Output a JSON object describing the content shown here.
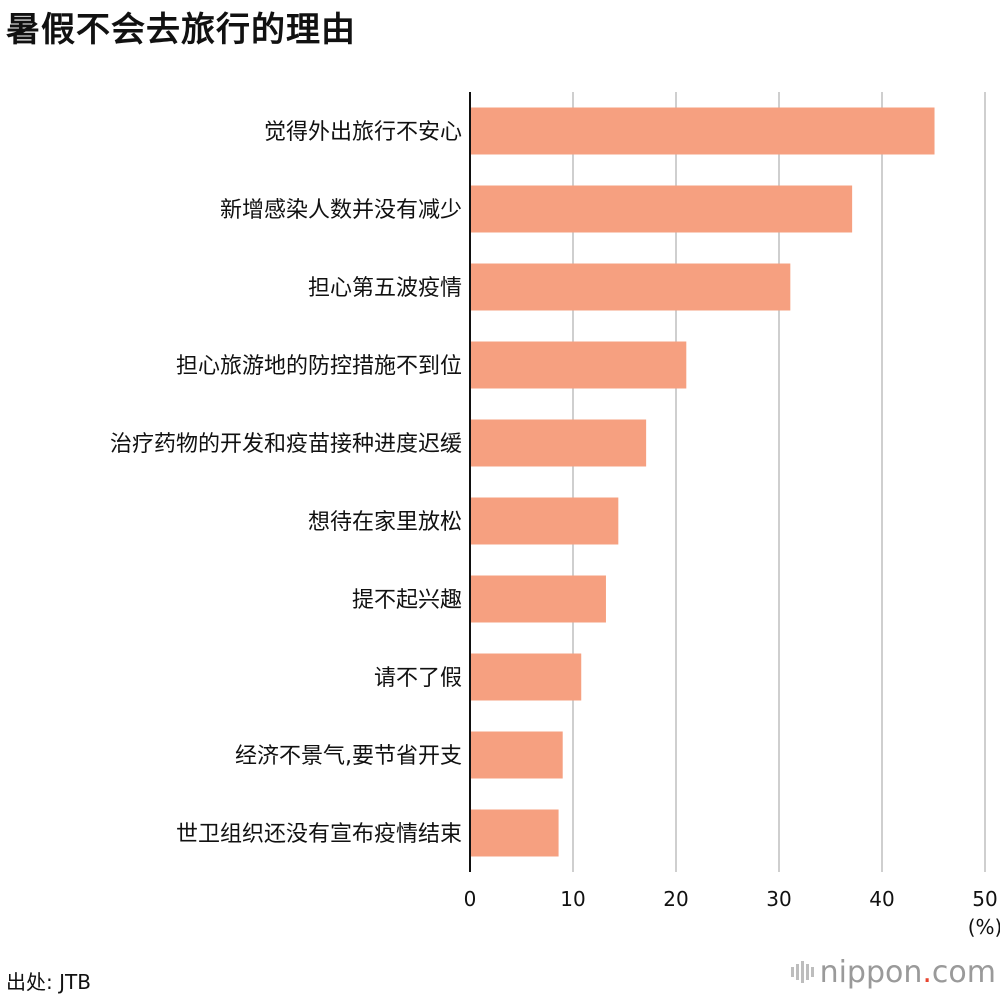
{
  "title": "暑假不会去旅行的理由",
  "source": "出处: JTB",
  "logo": {
    "name": "nippon",
    "dot": ".",
    "suffix": "com"
  },
  "chart_data": {
    "type": "bar",
    "orientation": "horizontal",
    "title": "暑假不会去旅行的理由",
    "categories": [
      "觉得外出旅行不安心",
      "新增感染人数并没有减少",
      "担心第五波疫情",
      "担心旅游地的防控措施不到位",
      "治疗药物的开发和疫苗接种进度迟缓",
      "想待在家里放松",
      "提不起兴趣",
      "请不了假",
      "经济不景气,要节省开支",
      "世卫组织还没有宣布疫情结束"
    ],
    "values": [
      45.1,
      37.1,
      31.1,
      21.0,
      17.1,
      14.4,
      13.2,
      10.8,
      9.0,
      8.6
    ],
    "xlim": [
      0,
      50
    ],
    "xticks": [
      "0",
      "10",
      "20",
      "30",
      "40",
      "50"
    ],
    "unit_label": "(%)",
    "grid": "vertical",
    "bar_color": "#f6a080"
  }
}
